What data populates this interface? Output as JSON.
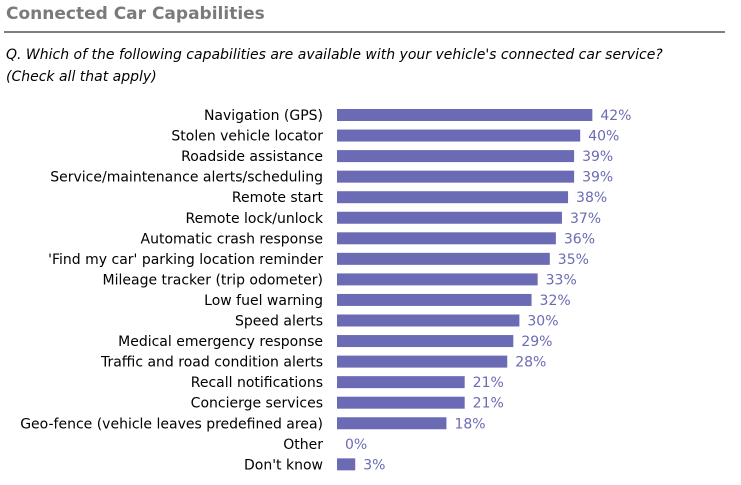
{
  "header": {
    "title": "Connected Car Capabilities",
    "question_line1": "Q. Which of the following capabilities are available with your vehicle's connected car service?",
    "question_line2": "(Check all that apply)"
  },
  "chart_data": {
    "type": "bar",
    "orientation": "horizontal",
    "bar_color": "#6b6bb5",
    "label_color": "#6b6bb5",
    "categories": [
      "Navigation (GPS)",
      "Stolen vehicle locator",
      "Roadside assistance",
      "Service/maintenance alerts/scheduling",
      "Remote start",
      "Remote lock/unlock",
      "Automatic crash response",
      "'Find my car' parking location reminder",
      "Mileage tracker (trip odometer)",
      "Low fuel warning",
      "Speed alerts",
      "Medical emergency response",
      "Traffic and road condition alerts",
      "Recall notifications",
      "Concierge services",
      "Geo-fence (vehicle leaves predefined area)",
      "Other",
      "Don't know"
    ],
    "values": [
      42,
      40,
      39,
      39,
      38,
      37,
      36,
      35,
      33,
      32,
      30,
      29,
      28,
      21,
      21,
      18,
      0,
      3
    ],
    "value_labels": [
      "42%",
      "40%",
      "39%",
      "39%",
      "38%",
      "37%",
      "36%",
      "35%",
      "33%",
      "32%",
      "30%",
      "29%",
      "28%",
      "21%",
      "21%",
      "18%",
      "0%",
      "3%"
    ],
    "xlim": [
      0,
      45
    ]
  }
}
